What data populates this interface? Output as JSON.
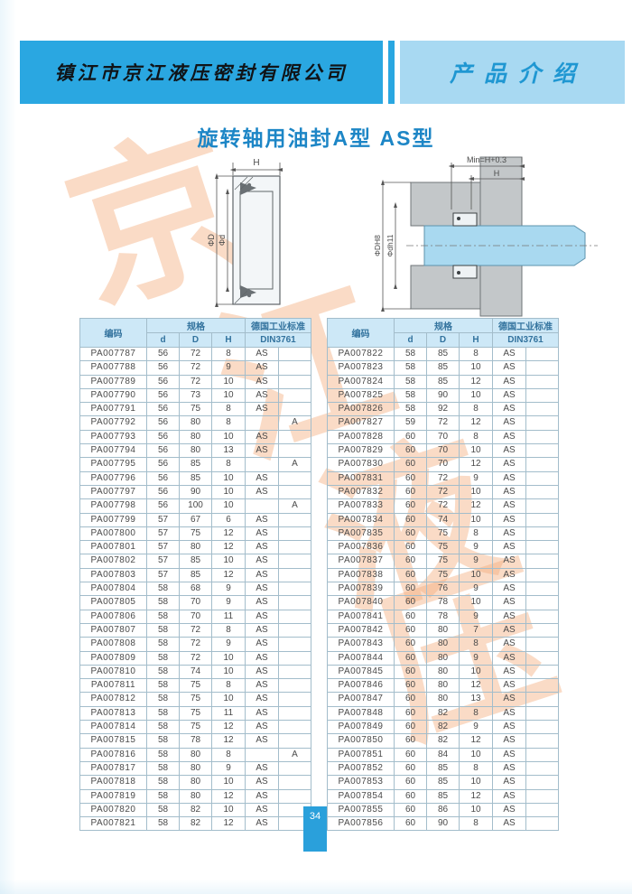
{
  "header": {
    "company": "镇江市京江液压密封有限公司",
    "section": "产品介绍"
  },
  "title": "旋转轴用油封A型  AS型",
  "watermark": [
    "京",
    "江",
    "液",
    "压"
  ],
  "diagram": {
    "h_left": "H",
    "phi_D": "ΦD",
    "phi_d": "Φd",
    "min_label": "Min=H+0.3",
    "h_right": "H",
    "phi_DH8": "ΦDH8",
    "phi_dh11": "Φdh11"
  },
  "table": {
    "header": {
      "code": "编码",
      "spec": "规格",
      "d": "d",
      "D": "D",
      "H": "H",
      "std": "德国工业标准",
      "din": "DIN3761"
    },
    "left_rows": [
      [
        "PA007787",
        "56",
        "72",
        "8",
        "AS",
        ""
      ],
      [
        "PA007788",
        "56",
        "72",
        "9",
        "AS",
        ""
      ],
      [
        "PA007789",
        "56",
        "72",
        "10",
        "AS",
        ""
      ],
      [
        "PA007790",
        "56",
        "73",
        "10",
        "AS",
        ""
      ],
      [
        "PA007791",
        "56",
        "75",
        "8",
        "AS",
        ""
      ],
      [
        "PA007792",
        "56",
        "80",
        "8",
        "",
        "A"
      ],
      [
        "PA007793",
        "56",
        "80",
        "10",
        "AS",
        ""
      ],
      [
        "PA007794",
        "56",
        "80",
        "13",
        "AS",
        ""
      ],
      [
        "PA007795",
        "56",
        "85",
        "8",
        "",
        "A"
      ],
      [
        "PA007796",
        "56",
        "85",
        "10",
        "AS",
        ""
      ],
      [
        "PA007797",
        "56",
        "90",
        "10",
        "AS",
        ""
      ],
      [
        "PA007798",
        "56",
        "100",
        "10",
        "",
        "A"
      ],
      [
        "PA007799",
        "57",
        "67",
        "6",
        "AS",
        ""
      ],
      [
        "PA007800",
        "57",
        "75",
        "12",
        "AS",
        ""
      ],
      [
        "PA007801",
        "57",
        "80",
        "12",
        "AS",
        ""
      ],
      [
        "PA007802",
        "57",
        "85",
        "10",
        "AS",
        ""
      ],
      [
        "PA007803",
        "57",
        "85",
        "12",
        "AS",
        ""
      ],
      [
        "PA007804",
        "58",
        "68",
        "9",
        "AS",
        ""
      ],
      [
        "PA007805",
        "58",
        "70",
        "9",
        "AS",
        ""
      ],
      [
        "PA007806",
        "58",
        "70",
        "11",
        "AS",
        ""
      ],
      [
        "PA007807",
        "58",
        "72",
        "8",
        "AS",
        ""
      ],
      [
        "PA007808",
        "58",
        "72",
        "9",
        "AS",
        ""
      ],
      [
        "PA007809",
        "58",
        "72",
        "10",
        "AS",
        ""
      ],
      [
        "PA007810",
        "58",
        "74",
        "10",
        "AS",
        ""
      ],
      [
        "PA007811",
        "58",
        "75",
        "8",
        "AS",
        ""
      ],
      [
        "PA007812",
        "58",
        "75",
        "10",
        "AS",
        ""
      ],
      [
        "PA007813",
        "58",
        "75",
        "11",
        "AS",
        ""
      ],
      [
        "PA007814",
        "58",
        "75",
        "12",
        "AS",
        ""
      ],
      [
        "PA007815",
        "58",
        "78",
        "12",
        "AS",
        ""
      ],
      [
        "PA007816",
        "58",
        "80",
        "8",
        "",
        "A"
      ],
      [
        "PA007817",
        "58",
        "80",
        "9",
        "AS",
        ""
      ],
      [
        "PA007818",
        "58",
        "80",
        "10",
        "AS",
        ""
      ],
      [
        "PA007819",
        "58",
        "80",
        "12",
        "AS",
        ""
      ],
      [
        "PA007820",
        "58",
        "82",
        "10",
        "AS",
        ""
      ],
      [
        "PA007821",
        "58",
        "82",
        "12",
        "AS",
        ""
      ]
    ],
    "right_rows": [
      [
        "PA007822",
        "58",
        "85",
        "8",
        "AS",
        ""
      ],
      [
        "PA007823",
        "58",
        "85",
        "10",
        "AS",
        ""
      ],
      [
        "PA007824",
        "58",
        "85",
        "12",
        "AS",
        ""
      ],
      [
        "PA007825",
        "58",
        "90",
        "10",
        "AS",
        ""
      ],
      [
        "PA007826",
        "58",
        "92",
        "8",
        "AS",
        ""
      ],
      [
        "PA007827",
        "59",
        "72",
        "12",
        "AS",
        ""
      ],
      [
        "PA007828",
        "60",
        "70",
        "8",
        "AS",
        ""
      ],
      [
        "PA007829",
        "60",
        "70",
        "10",
        "AS",
        ""
      ],
      [
        "PA007830",
        "60",
        "70",
        "12",
        "AS",
        ""
      ],
      [
        "PA007831",
        "60",
        "72",
        "9",
        "AS",
        ""
      ],
      [
        "PA007832",
        "60",
        "72",
        "10",
        "AS",
        ""
      ],
      [
        "PA007833",
        "60",
        "72",
        "12",
        "AS",
        ""
      ],
      [
        "PA007834",
        "60",
        "74",
        "10",
        "AS",
        ""
      ],
      [
        "PA007835",
        "60",
        "75",
        "8",
        "AS",
        ""
      ],
      [
        "PA007836",
        "60",
        "75",
        "9",
        "AS",
        ""
      ],
      [
        "PA007837",
        "60",
        "75",
        "9",
        "AS",
        ""
      ],
      [
        "PA007838",
        "60",
        "75",
        "10",
        "AS",
        ""
      ],
      [
        "PA007839",
        "60",
        "76",
        "9",
        "AS",
        ""
      ],
      [
        "PA007840",
        "60",
        "78",
        "10",
        "AS",
        ""
      ],
      [
        "PA007841",
        "60",
        "78",
        "9",
        "AS",
        ""
      ],
      [
        "PA007842",
        "60",
        "80",
        "7",
        "AS",
        ""
      ],
      [
        "PA007843",
        "60",
        "80",
        "8",
        "AS",
        ""
      ],
      [
        "PA007844",
        "60",
        "80",
        "9",
        "AS",
        ""
      ],
      [
        "PA007845",
        "60",
        "80",
        "10",
        "AS",
        ""
      ],
      [
        "PA007846",
        "60",
        "80",
        "12",
        "AS",
        ""
      ],
      [
        "PA007847",
        "60",
        "80",
        "13",
        "AS",
        ""
      ],
      [
        "PA007848",
        "60",
        "82",
        "8",
        "AS",
        ""
      ],
      [
        "PA007849",
        "60",
        "82",
        "9",
        "AS",
        ""
      ],
      [
        "PA007850",
        "60",
        "82",
        "12",
        "AS",
        ""
      ],
      [
        "PA007851",
        "60",
        "84",
        "10",
        "AS",
        ""
      ],
      [
        "PA007852",
        "60",
        "85",
        "8",
        "AS",
        ""
      ],
      [
        "PA007853",
        "60",
        "85",
        "10",
        "AS",
        ""
      ],
      [
        "PA007854",
        "60",
        "85",
        "12",
        "AS",
        ""
      ],
      [
        "PA007855",
        "60",
        "86",
        "10",
        "AS",
        ""
      ],
      [
        "PA007856",
        "60",
        "90",
        "8",
        "AS",
        ""
      ]
    ]
  },
  "footer": {
    "page_number": "34"
  }
}
